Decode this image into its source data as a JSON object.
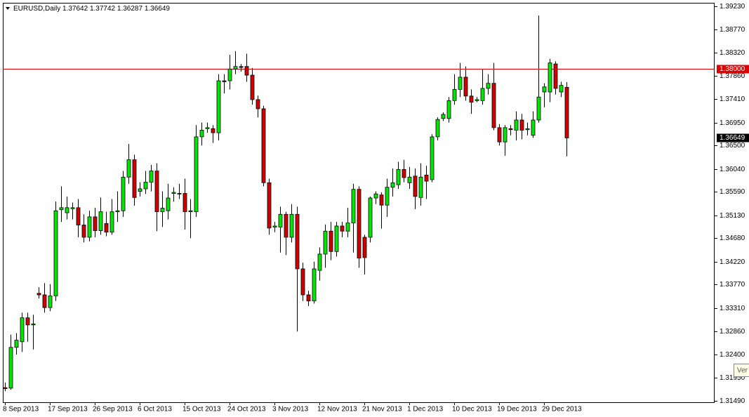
{
  "chart_data": {
    "type": "candlestick",
    "title": "EURUSD,Daily",
    "header_values": [
      "1.37642",
      "1.37742",
      "1.36287",
      "1.36649"
    ],
    "categories": [
      "8 Sep 2013",
      null,
      null,
      null,
      null,
      null,
      null,
      null,
      "17 Sep 2013",
      null,
      null,
      null,
      null,
      null,
      null,
      null,
      "26 Sep 2013",
      null,
      null,
      null,
      null,
      null,
      null,
      null,
      "6 Oct 2013",
      null,
      null,
      null,
      null,
      null,
      null,
      null,
      "15 Oct 2013",
      null,
      null,
      null,
      null,
      null,
      null,
      null,
      "24 Oct 2013",
      null,
      null,
      null,
      null,
      null,
      null,
      null,
      "3 Nov 2013",
      null,
      null,
      null,
      null,
      null,
      null,
      null,
      "12 Nov 2013",
      null,
      null,
      null,
      null,
      null,
      null,
      null,
      "21 Nov 2013",
      null,
      null,
      null,
      null,
      null,
      null,
      null,
      "1 Dec 2013",
      null,
      null,
      null,
      null,
      null,
      null,
      null,
      "10 Dec 2013",
      null,
      null,
      null,
      null,
      null,
      null,
      null,
      "19 Dec 2013",
      null,
      null,
      null,
      null,
      null,
      null,
      null,
      "29 Dec 2013",
      null,
      null,
      null,
      null
    ],
    "open": [
      1.3175,
      1.3174,
      1.3254,
      1.3265,
      1.3312,
      1.3298,
      1.336,
      1.3357,
      1.3332,
      1.3355,
      1.3524,
      1.3518,
      1.3526,
      1.3528,
      1.3494,
      1.347,
      1.351,
      1.3483,
      1.3497,
      1.348,
      1.352,
      1.3522,
      1.3588,
      1.3622,
      1.356,
      1.3565,
      1.3578,
      1.36,
      1.352,
      1.3522,
      1.3556,
      1.3556,
      1.3556,
      1.352,
      1.352,
      1.3667,
      1.3683,
      1.3683,
      1.3675,
      1.3777,
      1.3777,
      1.38,
      1.3805,
      1.3805,
      1.3788,
      1.374,
      1.3722,
      1.3577,
      1.349,
      1.349,
      1.3515,
      1.347,
      1.3515,
      1.3408,
      1.3357,
      1.3345,
      1.3405,
      1.3437,
      1.3482,
      1.3442,
      1.3492,
      1.3482,
      1.3498,
      1.3564,
      1.347,
      1.347,
      1.3547,
      1.3553,
      1.3533,
      1.3568,
      1.3573,
      1.3603,
      1.3577,
      1.359,
      1.3548,
      1.3592,
      1.3583,
      1.3667,
      1.3703,
      1.3703,
      1.3738,
      1.376,
      1.3784,
      1.3747,
      1.3738,
      1.3738,
      1.3762,
      1.3772,
      1.3685,
      1.3657,
      1.3683,
      1.368,
      1.37,
      1.3681,
      1.367,
      1.37,
      1.3755,
      1.3755,
      1.381,
      1.3755,
      1.37642
    ],
    "high": [
      1.3185,
      1.3279,
      1.3282,
      1.3322,
      1.3322,
      1.3318,
      1.3372,
      1.338,
      1.3378,
      1.354,
      1.357,
      1.355,
      1.3538,
      1.3545,
      1.3515,
      1.3522,
      1.3528,
      1.3548,
      1.352,
      1.3545,
      1.356,
      1.36,
      1.3653,
      1.3632,
      1.3578,
      1.36,
      1.3612,
      1.3615,
      1.356,
      1.3575,
      1.3568,
      1.3575,
      1.3585,
      1.3545,
      1.369,
      1.3695,
      1.3695,
      1.369,
      1.379,
      1.379,
      1.3828,
      1.3835,
      1.381,
      1.383,
      1.3802,
      1.3748,
      1.3728,
      1.3585,
      1.35,
      1.353,
      1.352,
      1.3535,
      1.353,
      1.342,
      1.3365,
      1.3422,
      1.345,
      1.3495,
      1.35,
      1.35,
      1.35,
      1.3528,
      1.3575,
      1.357,
      1.3475,
      1.355,
      1.356,
      1.3558,
      1.3585,
      1.3605,
      1.3618,
      1.3622,
      1.3608,
      1.3605,
      1.3615,
      1.361,
      1.3672,
      1.3705,
      1.3715,
      1.3745,
      1.379,
      1.3812,
      1.3805,
      1.376,
      1.3745,
      1.38,
      1.379,
      1.3812,
      1.3692,
      1.369,
      1.369,
      1.3717,
      1.3712,
      1.3695,
      1.3717,
      1.3905,
      1.3772,
      1.382,
      1.3815,
      1.3775,
      1.37742
    ],
    "low": [
      1.3168,
      1.3171,
      1.324,
      1.3245,
      1.3265,
      1.325,
      1.335,
      1.3322,
      1.3325,
      1.3345,
      1.35,
      1.3505,
      1.3505,
      1.347,
      1.346,
      1.3462,
      1.347,
      1.3475,
      1.3472,
      1.3475,
      1.35,
      1.351,
      1.3575,
      1.3532,
      1.355,
      1.3555,
      1.356,
      1.3482,
      1.349,
      1.3505,
      1.354,
      1.3545,
      1.3485,
      1.3468,
      1.351,
      1.365,
      1.3675,
      1.3655,
      1.366,
      1.3752,
      1.376,
      1.379,
      1.3795,
      1.3775,
      1.373,
      1.3705,
      1.357,
      1.3475,
      1.348,
      1.344,
      1.3435,
      1.346,
      1.3285,
      1.3345,
      1.3335,
      1.334,
      1.3385,
      1.341,
      1.3425,
      1.3432,
      1.347,
      1.347,
      1.344,
      1.341,
      1.3397,
      1.346,
      1.3535,
      1.3487,
      1.351,
      1.355,
      1.3565,
      1.3578,
      1.3565,
      1.3525,
      1.3532,
      1.3545,
      1.3578,
      1.366,
      1.3698,
      1.3695,
      1.373,
      1.3745,
      1.3738,
      1.3712,
      1.3735,
      1.373,
      1.375,
      1.368,
      1.365,
      1.363,
      1.367,
      1.366,
      1.3662,
      1.367,
      1.3665,
      1.3695,
      1.3725,
      1.3735,
      1.375,
      1.3745,
      1.36287
    ],
    "close": [
      1.3173,
      1.3254,
      1.3268,
      1.3312,
      1.3298,
      1.33,
      1.3357,
      1.3332,
      1.3355,
      1.3522,
      1.3528,
      1.3528,
      1.3528,
      1.3494,
      1.347,
      1.351,
      1.3483,
      1.352,
      1.348,
      1.352,
      1.3522,
      1.3588,
      1.3622,
      1.3548,
      1.3565,
      1.3578,
      1.36,
      1.352,
      1.3527,
      1.3547,
      1.3558,
      1.3555,
      1.352,
      1.3522,
      1.3667,
      1.368,
      1.3685,
      1.3675,
      1.3777,
      1.3775,
      1.38,
      1.3805,
      1.3803,
      1.3788,
      1.374,
      1.3722,
      1.3577,
      1.3488,
      1.3492,
      1.3515,
      1.347,
      1.3515,
      1.3408,
      1.3357,
      1.3345,
      1.3408,
      1.3437,
      1.3482,
      1.3442,
      1.3492,
      1.3482,
      1.3498,
      1.3564,
      1.3429,
      1.343,
      1.3547,
      1.3555,
      1.3533,
      1.3568,
      1.3577,
      1.3603,
      1.3587,
      1.3588,
      1.355,
      1.3588,
      1.358,
      1.3667,
      1.3701,
      1.3711,
      1.3738,
      1.376,
      1.3784,
      1.3747,
      1.3735,
      1.374,
      1.3762,
      1.3772,
      1.3685,
      1.3657,
      1.3685,
      1.3681,
      1.37,
      1.368,
      1.3683,
      1.37,
      1.3745,
      1.3765,
      1.3812,
      1.3762,
      1.3768,
      1.36649
    ],
    "up_color": "#00e600",
    "down_color": "#d00000",
    "ylim": [
      1.31463,
      1.39299
    ],
    "yticks": [
      {
        "value": 1.3923,
        "label": "1.39230"
      },
      {
        "value": 1.3877,
        "label": "1.38770"
      },
      {
        "value": 1.3832,
        "label": "1.38320"
      },
      {
        "value": 1.3786,
        "label": "1.37860"
      },
      {
        "value": 1.3741,
        "label": "1.37410"
      },
      {
        "value": 1.3695,
        "label": "1.36950"
      },
      {
        "value": 1.365,
        "label": "1.36500"
      },
      {
        "value": 1.3604,
        "label": "1.36040"
      },
      {
        "value": 1.3559,
        "label": "1.35590"
      },
      {
        "value": 1.3513,
        "label": "1.35130"
      },
      {
        "value": 1.3468,
        "label": "1.34680"
      },
      {
        "value": 1.3422,
        "label": "1.34220"
      },
      {
        "value": 1.3377,
        "label": "1.33770"
      },
      {
        "value": 1.3331,
        "label": "1.33310"
      },
      {
        "value": 1.3286,
        "label": "1.32860"
      },
      {
        "value": 1.324,
        "label": "1.32400"
      },
      {
        "value": 1.3195,
        "label": "1.31950"
      },
      {
        "value": 1.3149,
        "label": "1.31490"
      }
    ],
    "level_line": {
      "value": 1.38,
      "label": "1.38000",
      "color": "#e00000"
    },
    "last_price": {
      "value": 1.36649,
      "label": "1.36649"
    },
    "grid": false,
    "tooltip": "Ver"
  }
}
